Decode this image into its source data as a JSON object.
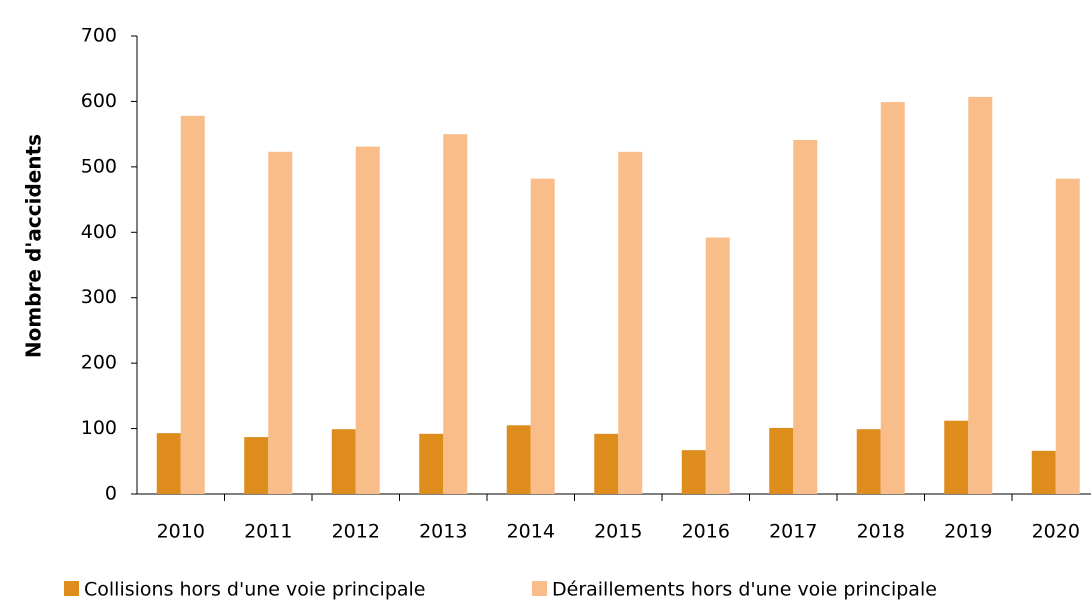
{
  "chart_data": {
    "type": "bar",
    "ylabel": "Nombre d'accidents",
    "categories": [
      "2010",
      "2011",
      "2012",
      "2013",
      "2014",
      "2015",
      "2016",
      "2017",
      "2018",
      "2019",
      "2020"
    ],
    "series": [
      {
        "name": "Collisions hors d'une voie principale",
        "color": "#de8c1c",
        "values": [
          93,
          87,
          99,
          92,
          105,
          92,
          67,
          101,
          99,
          112,
          66
        ]
      },
      {
        "name": "Déraillements hors d'une voie principale",
        "color": "#f9bd89",
        "values": [
          578,
          523,
          531,
          550,
          482,
          523,
          392,
          541,
          599,
          607,
          482
        ]
      }
    ],
    "ylim": [
      0,
      700
    ],
    "yticks": [
      0,
      100,
      200,
      300,
      400,
      500,
      600,
      700
    ],
    "grid": false,
    "legend": "bottom"
  }
}
